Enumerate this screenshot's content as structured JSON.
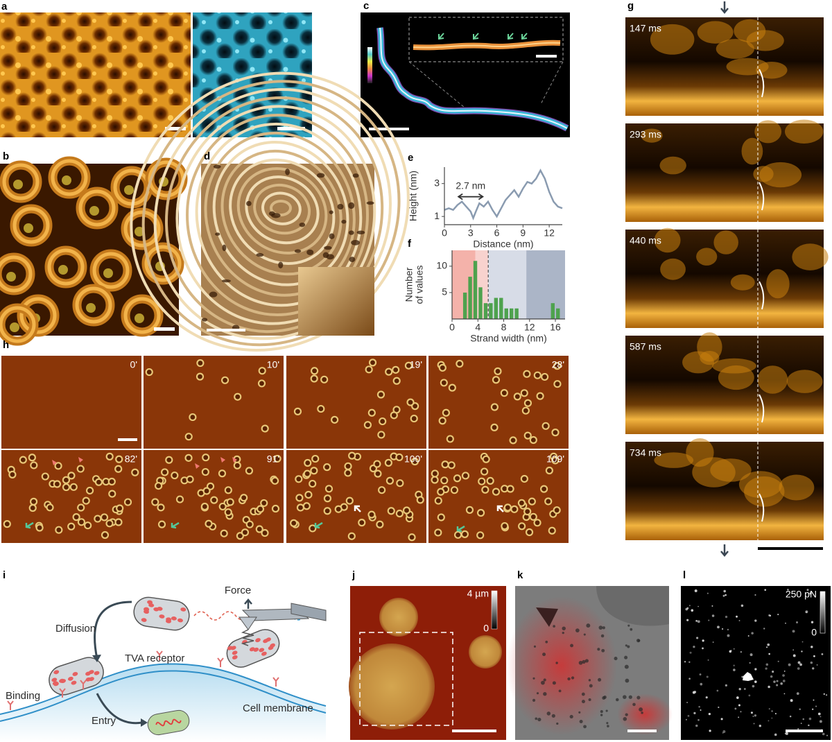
{
  "panel_labels": [
    "a",
    "b",
    "c",
    "d",
    "e",
    "f",
    "g",
    "h",
    "i",
    "j",
    "k",
    "l"
  ],
  "chart_data": [
    {
      "type": "line",
      "xlabel": "Distance (nm)",
      "ylabel": "Height (nm)",
      "annotation": "2.7 nm",
      "x": [
        0,
        0.5,
        1,
        1.5,
        2,
        2.5,
        3,
        3.3,
        3.6,
        4,
        4.5,
        5,
        5.5,
        6,
        6.5,
        7,
        7.5,
        8,
        8.5,
        9,
        9.5,
        10,
        10.5,
        11,
        11.5,
        12,
        12.5,
        13,
        13.5
      ],
      "values": [
        1.4,
        1.5,
        1.4,
        1.7,
        1.9,
        1.6,
        1.3,
        0.9,
        1.3,
        1.8,
        1.6,
        1.9,
        1.4,
        1.0,
        1.5,
        2.0,
        2.3,
        2.6,
        2.2,
        2.7,
        3.1,
        3.0,
        3.3,
        3.8,
        3.3,
        2.5,
        1.9,
        1.6,
        1.5
      ],
      "color": "#8a9bb0",
      "xlim": [
        0,
        13.5
      ],
      "ylim": [
        0.5,
        4
      ],
      "xticks": [
        0,
        3,
        6,
        9,
        12
      ],
      "yticks": [
        1,
        3
      ]
    },
    {
      "type": "histogram",
      "xlabel": "Strand width (nm)",
      "ylabel": [
        "Number",
        "of values"
      ],
      "bins": [
        1.6,
        2.4,
        3.2,
        4,
        4.8,
        5.6,
        6.4,
        7.2,
        8,
        8.8,
        9.6,
        10.4,
        11.2,
        12,
        12.8,
        13.6,
        14.4,
        15.2,
        16,
        16.8
      ],
      "counts": [
        5,
        8,
        11,
        6,
        3,
        3,
        4,
        4,
        2,
        2,
        2,
        0,
        0,
        0,
        0,
        0,
        0,
        3,
        2
      ],
      "color": "#4ea24e",
      "shaded_ranges": [
        {
          "from": 0,
          "to": 3.6,
          "color": "#f4b2aa"
        },
        {
          "from": 3.6,
          "to": 5.6,
          "color": "#f8d2ce"
        },
        {
          "from": 5.6,
          "to": 11.5,
          "color": "#d7dce7"
        },
        {
          "from": 11.5,
          "to": 17.5,
          "color": "#abb5c7"
        }
      ],
      "dashed_line_x": 5.6,
      "xlim": [
        0,
        17.5
      ],
      "ylim": [
        0,
        13
      ],
      "xticks": [
        0,
        4,
        8,
        12,
        16
      ],
      "yticks": [
        5,
        10
      ]
    }
  ],
  "panel_g": {
    "times": [
      "147 ms",
      "293 ms",
      "440 ms",
      "587 ms",
      "734 ms"
    ]
  },
  "panel_h": {
    "times": [
      "0'",
      "10'",
      "19'",
      "28'",
      "82'",
      "91'",
      "100'",
      "109'"
    ]
  },
  "panel_i": {
    "force": "Force",
    "diffusion": "Diffusion",
    "receptor": "TVA receptor",
    "binding": "Binding",
    "entry": "Entry",
    "membrane": "Cell membrane"
  },
  "panel_j": {
    "colorbar_ticks": [
      {
        "value": 4,
        "label": "4 µm"
      },
      0
    ]
  },
  "panel_l": {
    "colorbar_ticks": [
      {
        "value": 250,
        "label": "250 pN"
      },
      0
    ]
  }
}
